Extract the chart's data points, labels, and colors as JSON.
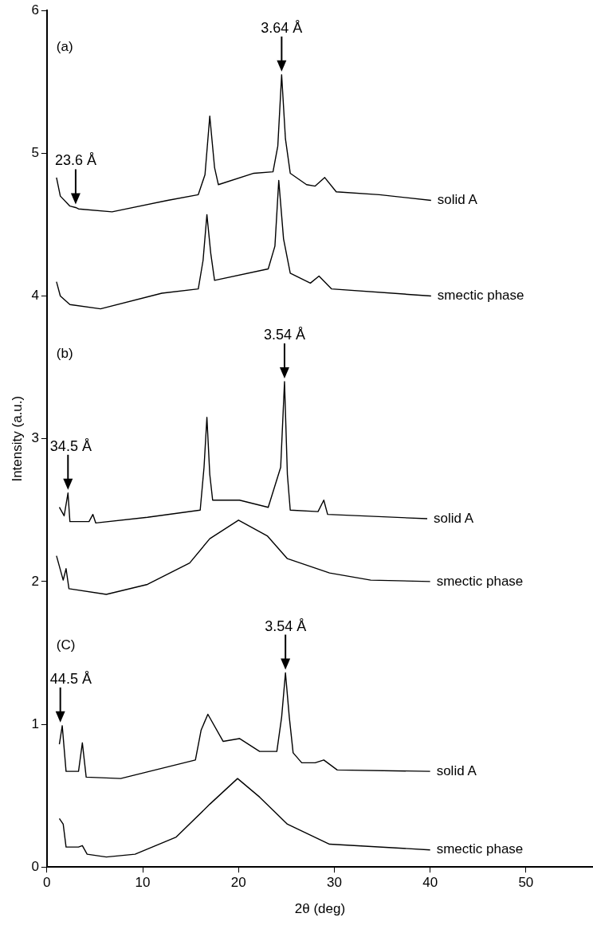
{
  "chart_data": {
    "type": "line",
    "xlabel": "2θ (deg)",
    "ylabel": "Intensity (a.u.)",
    "xlim": [
      0,
      57
    ],
    "ylim": [
      0,
      6
    ],
    "xticks": [
      0,
      10,
      20,
      30,
      40,
      50
    ],
    "yticks": [
      0,
      1,
      2,
      3,
      4,
      5,
      6
    ],
    "marker": "none",
    "legend": false,
    "series": [
      {
        "name": "solid A",
        "color": "#000000",
        "x": [
          1.0,
          1.4,
          2.4,
          3.0,
          3.3,
          6.8,
          12.6,
          15.8,
          16.5,
          17.0,
          17.5,
          17.9,
          21.6,
          23.6,
          24.1,
          24.5,
          24.9,
          25.4,
          27.1,
          28.0,
          29.0,
          30.2,
          34.7,
          40.1
        ],
        "values": [
          4.83,
          4.7,
          4.63,
          4.62,
          4.61,
          4.59,
          4.67,
          4.71,
          4.85,
          5.26,
          4.9,
          4.78,
          4.86,
          4.87,
          5.05,
          5.55,
          5.1,
          4.86,
          4.78,
          4.77,
          4.83,
          4.73,
          4.71,
          4.67
        ]
      },
      {
        "name": "smectic phase",
        "color": "#000000",
        "x": [
          1.0,
          1.4,
          2.4,
          5.6,
          12.0,
          15.8,
          16.3,
          16.7,
          17.1,
          17.5,
          23.1,
          23.8,
          24.2,
          24.7,
          25.4,
          27.5,
          28.4,
          29.7,
          40.1
        ],
        "values": [
          4.1,
          4.0,
          3.94,
          3.91,
          4.02,
          4.05,
          4.25,
          4.57,
          4.3,
          4.11,
          4.19,
          4.35,
          4.81,
          4.4,
          4.16,
          4.09,
          4.14,
          4.05,
          4.0
        ]
      },
      {
        "name": "solid A",
        "color": "#000000",
        "x": [
          1.3,
          1.8,
          2.2,
          2.4,
          4.4,
          4.8,
          5.1,
          10.5,
          16.0,
          16.4,
          16.7,
          17.0,
          17.3,
          20.1,
          23.1,
          24.4,
          24.8,
          25.1,
          25.4,
          28.3,
          28.9,
          29.3,
          39.7
        ],
        "values": [
          2.52,
          2.46,
          2.62,
          2.42,
          2.42,
          2.47,
          2.41,
          2.45,
          2.5,
          2.8,
          3.15,
          2.75,
          2.57,
          2.57,
          2.52,
          2.8,
          3.4,
          2.75,
          2.5,
          2.49,
          2.57,
          2.47,
          2.44
        ]
      },
      {
        "name": "smectic phase",
        "color": "#000000",
        "x": [
          1.0,
          1.7,
          2.0,
          2.3,
          6.2,
          10.5,
          14.9,
          17.0,
          20.0,
          23.0,
          25.1,
          29.5,
          33.8,
          40.0
        ],
        "values": [
          2.18,
          2.01,
          2.09,
          1.95,
          1.91,
          1.98,
          2.13,
          2.3,
          2.43,
          2.32,
          2.16,
          2.06,
          2.01,
          2.0
        ]
      },
      {
        "name": "solid A",
        "color": "#000000",
        "x": [
          1.3,
          1.6,
          2.0,
          3.3,
          3.7,
          4.1,
          7.7,
          15.5,
          16.1,
          16.8,
          18.4,
          20.1,
          22.2,
          24.0,
          24.5,
          24.9,
          25.3,
          25.7,
          26.6,
          28.0,
          28.9,
          30.3,
          40.0
        ],
        "values": [
          0.86,
          0.99,
          0.67,
          0.67,
          0.87,
          0.63,
          0.62,
          0.75,
          0.96,
          1.07,
          0.88,
          0.9,
          0.81,
          0.81,
          1.05,
          1.36,
          1.05,
          0.8,
          0.73,
          0.73,
          0.75,
          0.68,
          0.67
        ]
      },
      {
        "name": "smectic phase",
        "color": "#000000",
        "x": [
          1.3,
          1.7,
          2.0,
          3.3,
          3.7,
          4.2,
          6.2,
          9.2,
          13.5,
          17.0,
          19.9,
          22.2,
          25.1,
          29.5,
          40.0
        ],
        "values": [
          0.34,
          0.3,
          0.14,
          0.14,
          0.15,
          0.09,
          0.07,
          0.09,
          0.21,
          0.44,
          0.62,
          0.49,
          0.3,
          0.16,
          0.12
        ]
      }
    ],
    "annotations": [
      "(a)",
      "(b)",
      "(C)",
      {
        "text": "3.64 Å",
        "x": 24.5,
        "y": 5.55
      },
      {
        "text": "23.6 Å",
        "x": 3.0,
        "y": 4.62
      },
      {
        "text": "3.54 Å",
        "x": 24.8,
        "y": 3.4
      },
      {
        "text": "34.5 Å",
        "x": 2.2,
        "y": 2.62
      },
      {
        "text": "3.54 Å",
        "x": 24.9,
        "y": 1.36
      },
      {
        "text": "44.5 Å",
        "x": 1.4,
        "y": 0.99
      }
    ]
  }
}
